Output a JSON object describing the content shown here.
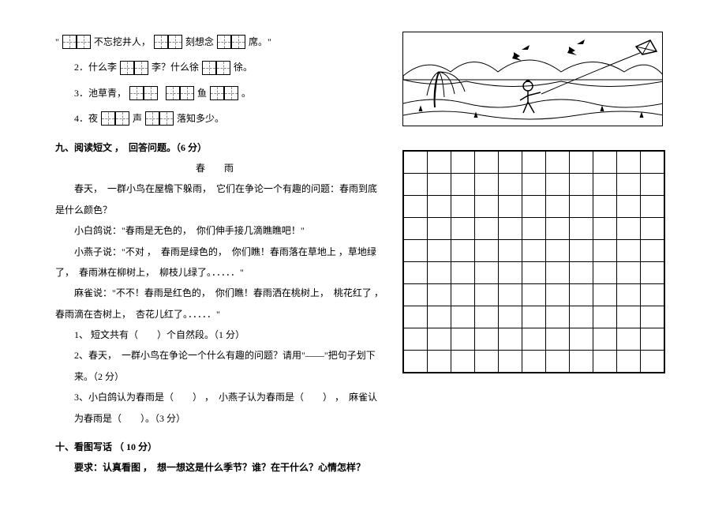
{
  "fill": {
    "q1_a": "\"",
    "q1_b": "不忘挖井人，",
    "q1_c": "刻想念",
    "q1_d": "席。\"",
    "q2_a": "2．什么李",
    "q2_b": "李？什么徐",
    "q2_c": "徐。",
    "q3_a": "3．池草青，",
    "q3_b": "鱼",
    "q3_c": "。",
    "q4_a": "4．夜",
    "q4_b": "声",
    "q4_c": "落知多少。"
  },
  "sec9_head": "九、阅读短文 ，　回答问题。（6 分）",
  "passage_title": "春　雨",
  "p1": "春天，　一群小鸟在屋檐下躲雨，　它们在争论一个有趣的问题：春雨到底是什么颜色？",
  "p2": "小白鸽说：\"春雨是无色的，　你们伸手接几滴瞧瞧吧！\"",
  "p3": "小燕子说：\"不对 ，　春雨是绿色的，　你们瞧！春雨落在草地上 ，草地绿了，　春雨淋在柳树上，　柳枝儿绿了。．．．．．\"",
  "p4": "麻雀说：\"不不！春雨是红色的，　你们瞧！春雨洒在桃树上，　桃花红了 ，　春雨滴在杏树上，　杏花儿红了。．．．．．\"",
  "q9_1": "1、 短文共有（　　）个自然段。（1 分）",
  "q9_2": "2、春天，　一群小鸟在争论一个什么有趣的问题？请用\"——\"把句子划下来。（2 分）",
  "q9_3": "3、小白鸽认为春雨是（　　） ，　小燕子认为春雨是（　　） ，　麻雀认为春雨是（　　）。（3 分）",
  "sec10_head": "十、看图写话 （ 10 分）",
  "sec10_req": "要求：认真看图 ，　想一想这是什么季节？谁？在干什么？心情怎样？",
  "grid": {
    "rows": 10,
    "cols": 11
  },
  "colors": {
    "line": "#000000",
    "bg": "#ffffff",
    "dash": "#888888"
  }
}
